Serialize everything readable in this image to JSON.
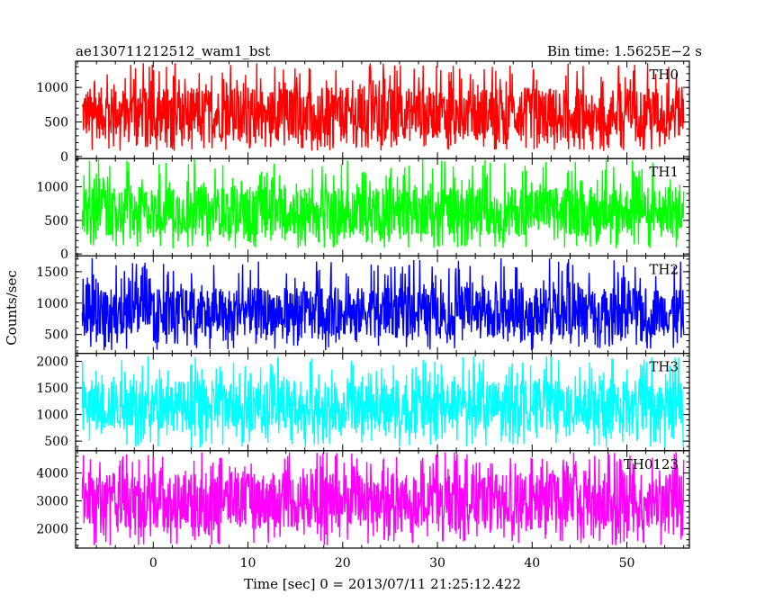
{
  "header": {
    "left": "ae130711212512_wam1_bst",
    "right": "Bin time: 1.5625E−2 s"
  },
  "chart_data": {
    "type": "line",
    "x_range": [
      -8.2,
      56.6
    ],
    "x_data_range": [
      -7.5,
      56.0
    ],
    "xlabel": "Time [sec] 0 = 2013/07/11 21:25:12.422",
    "x_ticks": [
      0,
      10,
      20,
      30,
      40,
      50
    ],
    "ylabel": "Counts/sec",
    "panels": [
      {
        "name": "TH0",
        "color": "#ff0000",
        "ylim": [
          -30,
          1380
        ],
        "y_ticks": [
          0,
          500,
          1000
        ],
        "band": [
          250,
          1000
        ],
        "spike_range": [
          80,
          1360
        ]
      },
      {
        "name": "TH1",
        "color": "#00ff00",
        "ylim": [
          -30,
          1420
        ],
        "y_ticks": [
          0,
          500,
          1000
        ],
        "band": [
          280,
          1000
        ],
        "spike_range": [
          80,
          1420
        ]
      },
      {
        "name": "TH2",
        "color": "#0000ff",
        "ylim": [
          200,
          1750
        ],
        "y_ticks": [
          500,
          1000,
          1500
        ],
        "band": [
          480,
          1250
        ],
        "spike_range": [
          250,
          1720
        ]
      },
      {
        "name": "TH3",
        "color": "#00ffff",
        "ylim": [
          320,
          2150
        ],
        "y_ticks": [
          500,
          1000,
          1500,
          2000
        ],
        "band": [
          700,
          1650
        ],
        "spike_range": [
          380,
          2100
        ]
      },
      {
        "name": "TH0123",
        "color": "#ff00ff",
        "ylim": [
          1300,
          4800
        ],
        "y_ticks": [
          2000,
          3000,
          4000
        ],
        "band": [
          2000,
          4000
        ],
        "spike_range": [
          1400,
          4750
        ]
      }
    ]
  }
}
